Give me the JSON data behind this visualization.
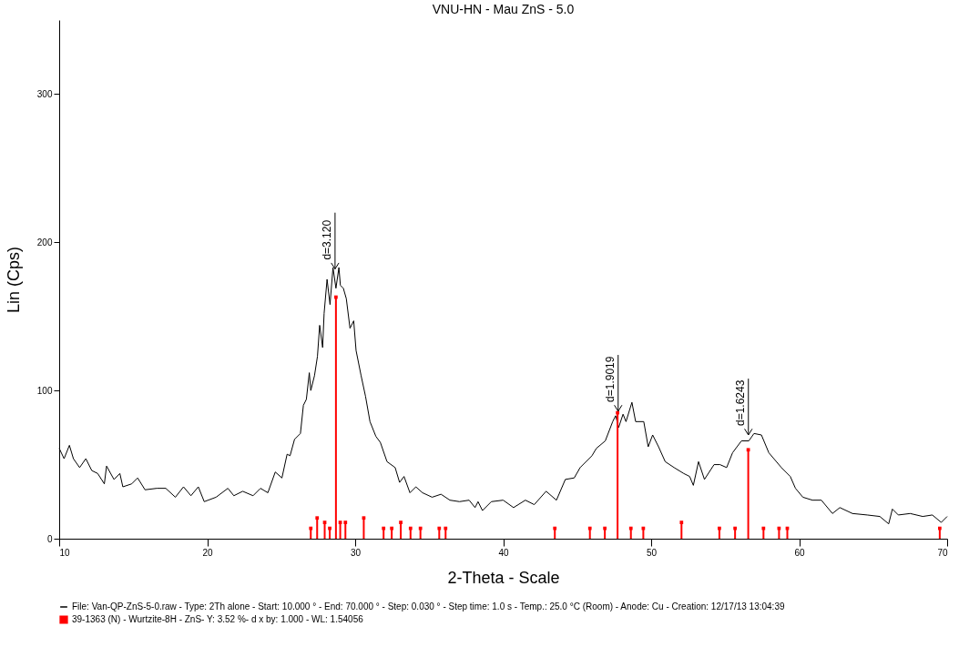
{
  "chart_data": {
    "type": "line",
    "title": "VNU-HN - Mau ZnS - 5.0",
    "xlabel": "2-Theta - Scale",
    "ylabel": "Lin (Cps)",
    "xlim": [
      10,
      70
    ],
    "xticks": [
      10,
      20,
      30,
      40,
      50,
      60,
      70
    ],
    "ylim": [
      0,
      350
    ],
    "yticks": [
      0,
      100,
      200,
      300
    ],
    "grid": false,
    "legend": "bottom",
    "series": [
      {
        "name": "File: Van-QP-ZnS-5-0.raw - Type: 2Th alone - Start: 10.000 ° - End: 70.000 ° - Step: 0.030 ° - Step time: 1.0 s - Temp.: 25.0 °C (Room) - Anode: Cu - Creation: 12/17/13 13:04:39",
        "color": "#000000",
        "x": [
          10.0,
          10.33,
          10.69,
          10.96,
          11.38,
          11.8,
          12.2,
          12.6,
          13.05,
          13.2,
          13.7,
          14.1,
          14.3,
          14.9,
          15.3,
          15.8,
          16.6,
          17.2,
          17.85,
          18.4,
          18.9,
          19.4,
          19.8,
          20.6,
          21.4,
          21.8,
          22.4,
          23.1,
          23.6,
          24.1,
          24.6,
          25.05,
          25.4,
          25.6,
          25.9,
          26.3,
          26.5,
          26.7,
          26.9,
          27.0,
          27.25,
          27.45,
          27.6,
          27.8,
          27.9,
          28.1,
          28.3,
          28.5,
          28.7,
          28.9,
          29.0,
          29.2,
          29.4,
          29.65,
          29.9,
          30.06,
          30.4,
          30.7,
          31.0,
          31.4,
          31.7,
          32.15,
          32.7,
          33.0,
          33.3,
          33.7,
          34.1,
          34.55,
          35.2,
          35.8,
          36.4,
          37.05,
          37.7,
          38.1,
          38.3,
          38.6,
          39.2,
          40.0,
          40.7,
          41.5,
          42.1,
          42.9,
          43.6,
          44.2,
          44.8,
          45.2,
          46.0,
          46.3,
          46.9,
          47.4,
          47.6,
          47.8,
          48.1,
          48.3,
          48.7,
          48.95,
          49.5,
          49.8,
          50.1,
          50.5,
          50.95,
          51.55,
          52.2,
          52.6,
          52.85,
          53.2,
          53.6,
          54.25,
          54.65,
          55.1,
          55.5,
          56.1,
          56.6,
          56.95,
          57.45,
          57.95,
          58.8,
          59.4,
          59.75,
          60.25,
          60.9,
          61.5,
          62.25,
          62.75,
          63.6,
          64.6,
          65.45,
          66.05,
          66.3,
          66.7,
          67.5,
          68.35,
          69.0,
          69.6,
          70.0
        ],
        "values": [
          61,
          54,
          63,
          54,
          48,
          54,
          46,
          44,
          37,
          49,
          40,
          44,
          35,
          37,
          41,
          33,
          34,
          34,
          28,
          35,
          29,
          35,
          25,
          28,
          34,
          29,
          32,
          29,
          34,
          31,
          45,
          41,
          57,
          56,
          67,
          71,
          90,
          94,
          112,
          100,
          110,
          123,
          144,
          129,
          152,
          175,
          158,
          183,
          169,
          183,
          171,
          169,
          162,
          142,
          147,
          127,
          110,
          96,
          79,
          69,
          65,
          52,
          48,
          38,
          42,
          31,
          35,
          31,
          28,
          30,
          26,
          25,
          26,
          21,
          25,
          19,
          25,
          26,
          21,
          26,
          23,
          32,
          26,
          40,
          41,
          48,
          56,
          61,
          66,
          79,
          83,
          75,
          84,
          79,
          92,
          79,
          79,
          62,
          70,
          62,
          52,
          48,
          44,
          42,
          36,
          52,
          40,
          50,
          50,
          48,
          58,
          66,
          66,
          71,
          70,
          58,
          48,
          42,
          34,
          28,
          26,
          26,
          17,
          21,
          17,
          16,
          15,
          10,
          20,
          16,
          17,
          15,
          16,
          11,
          15
        ]
      },
      {
        "name": "39-1363 (N) - Wurtzite-8H - ZnS- Y: 3.52 %- d x by: 1.000 - WL: 1.54056",
        "type": "lollipop",
        "color": "#ff0000",
        "x": [
          27.0,
          27.43,
          27.94,
          28.28,
          28.7,
          28.99,
          29.34,
          30.58,
          31.92,
          32.47,
          33.08,
          33.74,
          34.41,
          35.68,
          36.11,
          43.49,
          45.86,
          46.87,
          47.73,
          48.63,
          49.47,
          52.05,
          54.61,
          55.67,
          56.56,
          57.59,
          58.64,
          59.2,
          69.5
        ],
        "values": [
          7,
          14,
          11,
          7,
          163,
          11,
          11,
          14,
          7,
          7,
          11,
          7,
          7,
          7,
          7,
          7,
          7,
          7,
          85,
          7,
          7,
          11,
          7,
          7,
          60,
          7,
          7,
          7,
          7
        ]
      }
    ],
    "annotations": [
      {
        "text": "d=3.120",
        "x": 28.64,
        "y": 182
      },
      {
        "text": "d=1.9019",
        "x": 47.77,
        "y": 86
      },
      {
        "text": "d=1.6243",
        "x": 56.57,
        "y": 70
      }
    ]
  }
}
